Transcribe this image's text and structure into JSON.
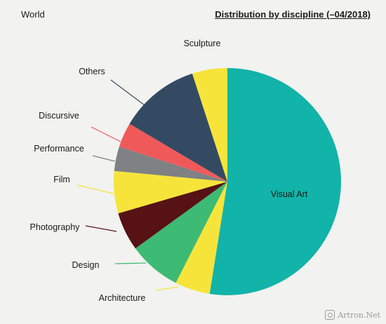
{
  "header": {
    "region": "World",
    "title": "Distribution by discipline (–04/2018)"
  },
  "watermark": {
    "text": "Artron.Net"
  },
  "chart_data": {
    "type": "pie",
    "title": "Distribution by discipline (–04/2018)",
    "start_angle_deg": 0,
    "direction": "clockwise",
    "slices": [
      {
        "label": "Visual Art",
        "value": 52.5,
        "color": "#12b3a8"
      },
      {
        "label": "Architecture",
        "value": 5.0,
        "color": "#f7e43a"
      },
      {
        "label": "Design",
        "value": 7.5,
        "color": "#3dba73"
      },
      {
        "label": "Photography",
        "value": 5.5,
        "color": "#561214"
      },
      {
        "label": "Film",
        "value": 6.0,
        "color": "#f7e43a"
      },
      {
        "label": "Performance",
        "value": 3.5,
        "color": "#7f8184"
      },
      {
        "label": "Discursive",
        "value": 3.5,
        "color": "#f0595a"
      },
      {
        "label": "Others",
        "value": 11.5,
        "color": "#344a63"
      },
      {
        "label": "Sculpture",
        "value": 5.0,
        "color": "#f7e43a"
      }
    ]
  }
}
